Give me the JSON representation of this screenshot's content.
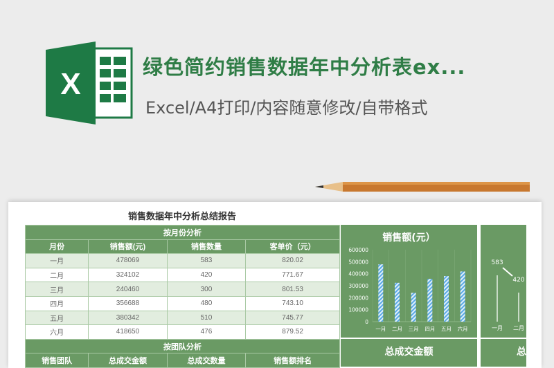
{
  "header": {
    "title": "绿色简约销售数据年中分析表ex...",
    "subtitle": "Excel/A4打印/内容随意修改/自带格式",
    "logo_letter": "X"
  },
  "report": {
    "title": "销售数据年中分析总结报告",
    "monthly": {
      "section": "按月份分析",
      "columns": [
        "月份",
        "销售额(元)",
        "销售数量",
        "客单价（元）"
      ],
      "rows": [
        [
          "一月",
          "478069",
          "583",
          "820.02"
        ],
        [
          "二月",
          "324102",
          "420",
          "771.67"
        ],
        [
          "三月",
          "240460",
          "300",
          "801.53"
        ],
        [
          "四月",
          "356688",
          "480",
          "743.10"
        ],
        [
          "五月",
          "380342",
          "510",
          "745.77"
        ],
        [
          "六月",
          "418650",
          "476",
          "879.52"
        ]
      ]
    },
    "team": {
      "section": "按团队分析",
      "columns": [
        "销售团队",
        "总成交金额",
        "总成交数量",
        "销售额排名"
      ]
    },
    "panels": {
      "total_amount": "总成交金额",
      "total_qty_partial": "总"
    }
  },
  "chart_data": [
    {
      "type": "bar",
      "title": "销售额(元）",
      "categories": [
        "一月",
        "二月",
        "三月",
        "四月",
        "五月",
        "六月"
      ],
      "values": [
        478069,
        324102,
        240460,
        356688,
        380342,
        418650
      ],
      "ylim": [
        0,
        600000
      ],
      "yticks": [
        "600000",
        "500000",
        "400000",
        "300000",
        "200000",
        "100000",
        "0"
      ],
      "grid": "vertical",
      "color": "#5aa9e6"
    },
    {
      "type": "line",
      "categories": [
        "一月",
        "二月"
      ],
      "values": [
        583,
        420
      ],
      "data_labels": [
        "583",
        "420"
      ],
      "partial": true
    }
  ],
  "colors": {
    "green": "#6a9a64",
    "title": "#2f7d46"
  }
}
